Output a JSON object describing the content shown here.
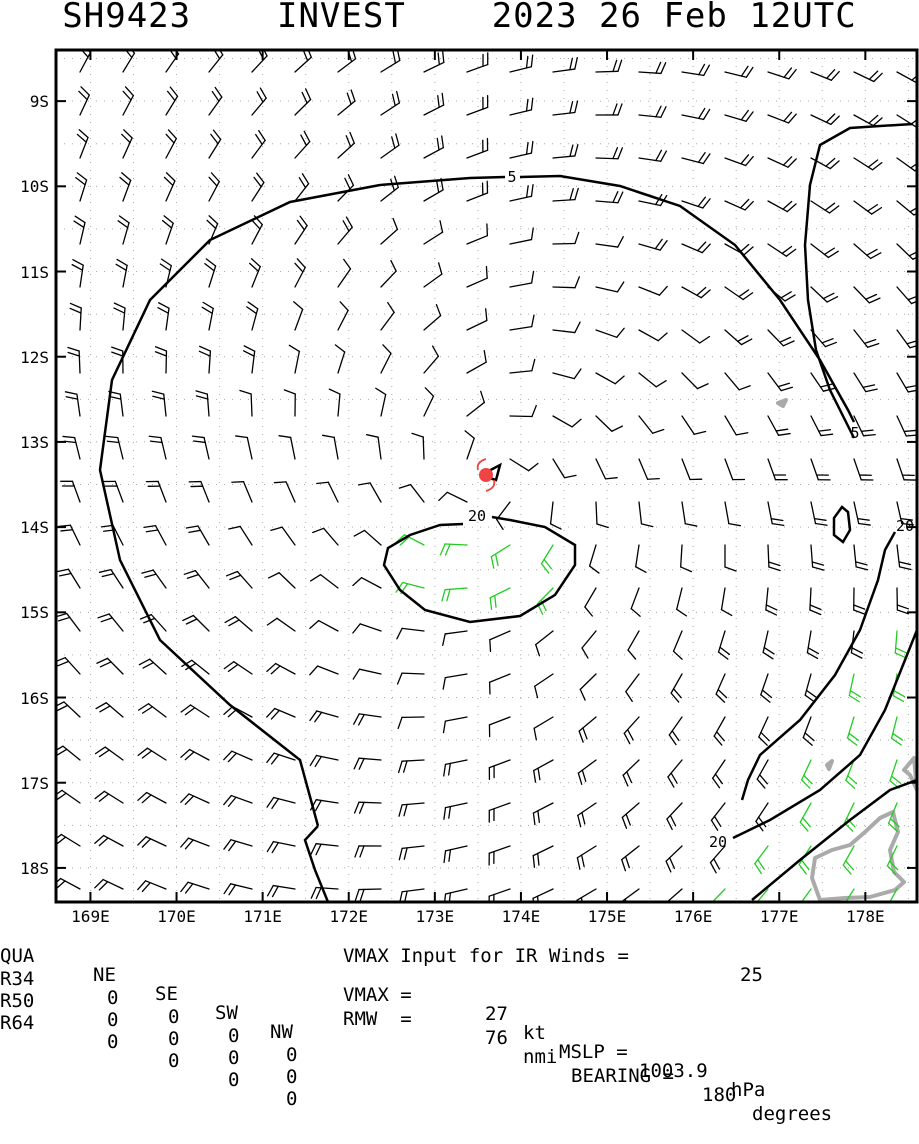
{
  "title": "SH9423    INVEST    2023 26 Feb 12UTC",
  "chart_data": {
    "type": "wind-barb-map",
    "x_axis": {
      "range": [
        168.6,
        178.6
      ],
      "ticks": [
        169,
        170,
        171,
        172,
        173,
        174,
        175,
        176,
        177,
        178
      ],
      "tick_labels": [
        "169E",
        "170E",
        "171E",
        "172E",
        "173E",
        "174E",
        "175E",
        "176E",
        "177E",
        "178E"
      ]
    },
    "y_axis": {
      "range": [
        -18.4,
        -8.4
      ],
      "ticks": [
        -9,
        -10,
        -11,
        -12,
        -13,
        -14,
        -15,
        -16,
        -17,
        -18
      ],
      "tick_labels": [
        "9S",
        "10S",
        "11S",
        "12S",
        "13S",
        "14S",
        "15S",
        "16S",
        "17S",
        "18S"
      ]
    },
    "grid": "dotted",
    "storm_center": {
      "lon": 173.65,
      "lat": -13.4
    },
    "wind_field": {
      "type": "cyclonic",
      "barb_colors": {
        "below_34kt": "#000000",
        "34kt_plus": "#22cc22"
      }
    },
    "contours": [
      {
        "label": "5",
        "kind": "isotach_kt"
      },
      {
        "label": "5",
        "kind": "isotach_kt"
      },
      {
        "label": "20",
        "kind": "isotach_kt"
      },
      {
        "label": "20",
        "kind": "isotach_kt"
      },
      {
        "label": "20",
        "kind": "isotach_kt"
      }
    ],
    "colors": {
      "contour": "#000000",
      "strong_wind": "#22cc22",
      "land": "#aaaaaa",
      "center": "#ee4444"
    }
  },
  "table": {
    "header": [
      "QUA",
      "NE",
      "SE",
      "SW",
      "NW"
    ],
    "rows": [
      {
        "name": "R34",
        "values": [
          "0",
          "0",
          "0",
          "0"
        ]
      },
      {
        "name": "R50",
        "values": [
          "0",
          "0",
          "0",
          "0"
        ]
      },
      {
        "name": "R64",
        "values": [
          "0",
          "0",
          "0",
          "0"
        ]
      }
    ]
  },
  "info": {
    "vmax_input_text": "VMAX Input for IR Winds =",
    "vmax_input_value": "25",
    "vmax_label": "VMAX =",
    "vmax_value": "27",
    "vmax_unit": "kt",
    "mslp_label": "MSLP =",
    "mslp_value": "1003.9",
    "mslp_unit": "hPa",
    "rmw_label": "RMW  =",
    "rmw_value": "76",
    "rmw_unit": "nmi",
    "bearing_label": "BEARING =",
    "bearing_value": "180",
    "bearing_unit": "degrees"
  }
}
